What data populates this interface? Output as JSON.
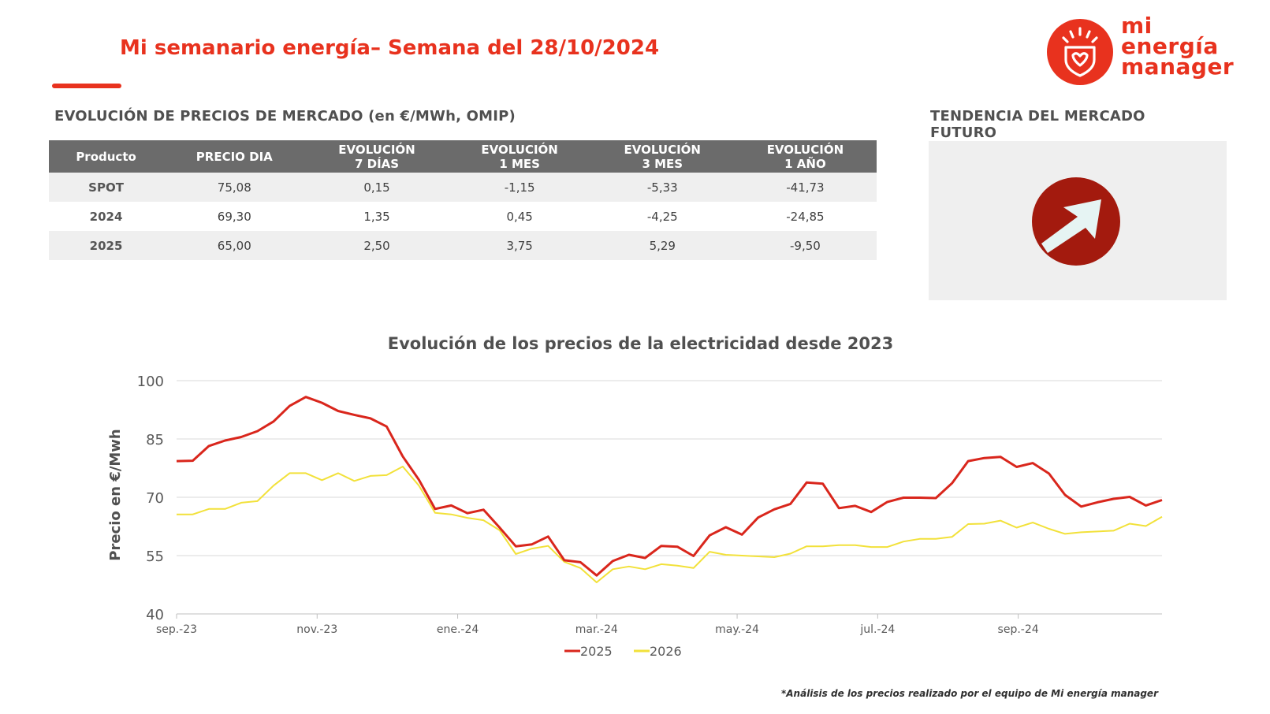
{
  "header": {
    "title": "Mi semanario energía– Semana del 28/10/2024",
    "brand_color": "#e8321e"
  },
  "logo": {
    "text_lines": [
      "mi",
      "energía",
      "manager"
    ],
    "icon": "shield-heart-icon"
  },
  "market_table": {
    "title": "EVOLUCIÓN DE PRECIOS DE MERCADO (en €/MWh, OMIP)",
    "headers": [
      [
        "Producto"
      ],
      [
        "PRECIO DIA"
      ],
      [
        "EVOLUCIÓN",
        "7 DÍAS"
      ],
      [
        "EVOLUCIÓN",
        "1 MES"
      ],
      [
        "EVOLUCIÓN",
        "3 MES"
      ],
      [
        "EVOLUCIÓN",
        "1 AÑO"
      ]
    ],
    "rows": [
      [
        "SPOT",
        "75,08",
        "0,15",
        "-1,15",
        "-5,33",
        "-41,73"
      ],
      [
        "2024",
        "69,30",
        "1,35",
        "0,45",
        "-4,25",
        "-24,85"
      ],
      [
        "2025",
        "65,00",
        "2,50",
        "3,75",
        "5,29",
        "-9,50"
      ]
    ]
  },
  "trend": {
    "title": "TENDENCIA DEL MERCADO FUTURO",
    "icon": "arrow-up-right-icon",
    "direction": "up",
    "icon_color": "#a31a0e"
  },
  "chart_data": {
    "type": "line",
    "title": "Evolución de los precios de la electricidad desde 2023",
    "ylabel": "Precio en €/Mwh",
    "xlabel": "",
    "ylim": [
      40,
      100
    ],
    "yticks": [
      40,
      55,
      70,
      85,
      100
    ],
    "x_tick_labels": [
      "sep.-23",
      "nov.-23",
      "ene.-24",
      "mar.-24",
      "may.-24",
      "jul.-24",
      "sep.-24"
    ],
    "x_tick_positions": [
      0,
      8.7,
      17.4,
      26,
      34.7,
      43.4,
      52.1
    ],
    "grid": true,
    "legend_position": "bottom",
    "series": [
      {
        "name": "2025",
        "color": "#d9261c",
        "values": [
          79.3,
          79.4,
          83.2,
          84.6,
          85.5,
          87.0,
          89.5,
          93.5,
          95.8,
          94.3,
          92.2,
          91.2,
          90.3,
          88.2,
          80.5,
          74.5,
          67.0,
          67.9,
          65.9,
          66.8,
          62.2,
          57.4,
          57.9,
          59.9,
          53.8,
          53.3,
          49.9,
          53.6,
          55.2,
          54.4,
          57.5,
          57.3,
          54.9,
          60.2,
          62.3,
          60.4,
          64.8,
          66.9,
          68.3,
          73.8,
          73.5,
          67.2,
          67.8,
          66.2,
          68.8,
          69.9,
          69.9,
          69.8,
          73.6,
          79.3,
          80.1,
          80.4,
          77.8,
          78.8,
          76.1,
          70.6,
          67.6,
          68.7,
          69.6,
          70.1,
          67.9,
          69.3
        ]
      },
      {
        "name": "2026",
        "color": "#f2e13a",
        "values": [
          65.6,
          65.6,
          67.0,
          67.0,
          68.6,
          69.0,
          73.0,
          76.2,
          76.2,
          74.4,
          76.2,
          74.2,
          75.5,
          75.7,
          77.9,
          73.0,
          66.0,
          65.6,
          64.7,
          64.1,
          61.5,
          55.4,
          56.8,
          57.5,
          53.4,
          51.8,
          48.1,
          51.5,
          52.2,
          51.5,
          52.8,
          52.4,
          51.8,
          56.0,
          55.2,
          55.0,
          54.8,
          54.6,
          55.5,
          57.4,
          57.4,
          57.7,
          57.7,
          57.2,
          57.2,
          58.6,
          59.3,
          59.3,
          59.8,
          63.1,
          63.2,
          64.0,
          62.2,
          63.5,
          61.9,
          60.6,
          61.0,
          61.2,
          61.4,
          63.2,
          62.6,
          65.0
        ]
      }
    ]
  },
  "footnote": "*Análisis de los precios realizado por el equipo de Mi energía manager"
}
